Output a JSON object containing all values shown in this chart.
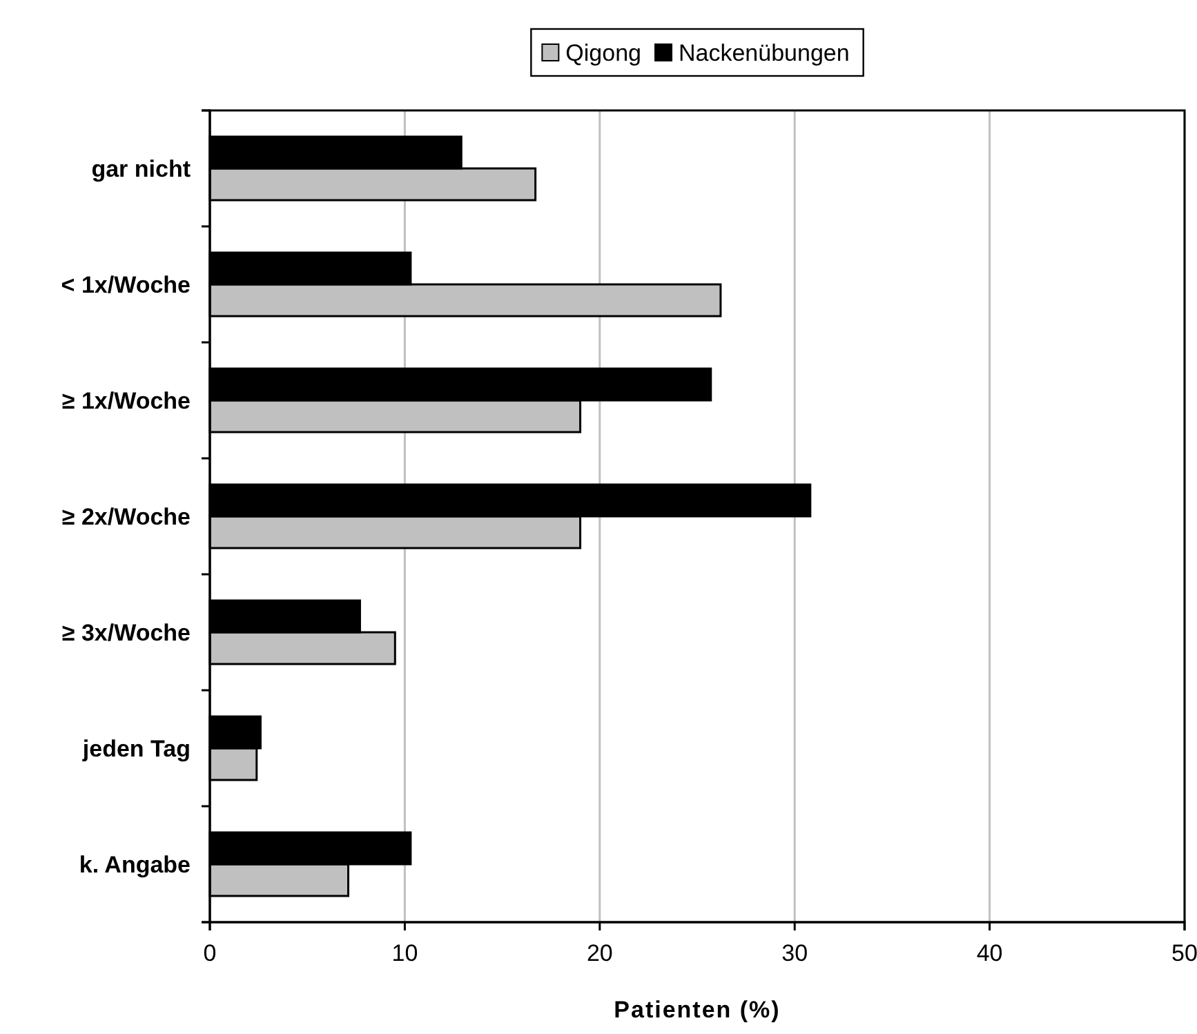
{
  "chart_data": {
    "type": "bar",
    "orientation": "horizontal",
    "categories": [
      "gar nicht",
      "< 1x/Woche",
      "≥ 1x/Woche",
      "≥ 2x/Woche",
      "≥ 3x/Woche",
      "jeden Tag",
      "k. Angabe"
    ],
    "series": [
      {
        "name": "Qigong",
        "color": "#c0c0c0",
        "values": [
          16.7,
          26.2,
          19.0,
          19.0,
          9.5,
          2.4,
          7.1
        ]
      },
      {
        "name": "Nackenübungen",
        "color": "#000000",
        "values": [
          12.9,
          10.3,
          25.7,
          30.8,
          7.7,
          2.6,
          10.3
        ]
      }
    ],
    "xlim": [
      0,
      50
    ],
    "xticks": [
      0,
      10,
      20,
      30,
      40,
      50
    ],
    "xlabel": "Patienten (%)",
    "grid": "x",
    "legend": "top"
  }
}
